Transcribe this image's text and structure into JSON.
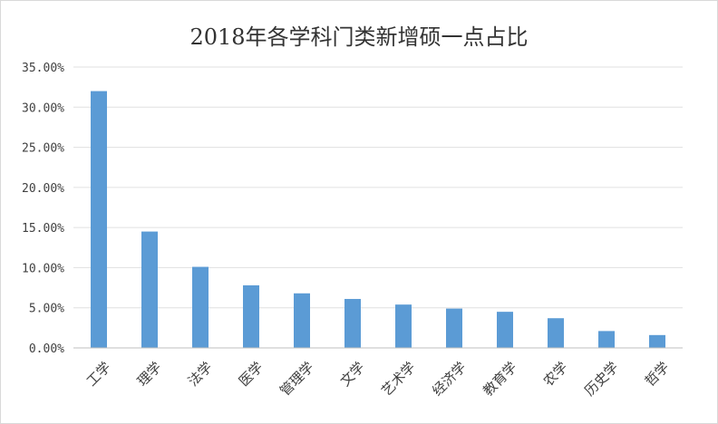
{
  "chart_data": {
    "type": "bar",
    "title": "2018年各学科门类新增硕一点占比",
    "xlabel": "",
    "ylabel": "",
    "categories": [
      "工学",
      "理学",
      "法学",
      "医学",
      "管理学",
      "文学",
      "艺术学",
      "经济学",
      "教育学",
      "农学",
      "历史学",
      "哲学"
    ],
    "values": [
      0.32,
      0.145,
      0.101,
      0.078,
      0.068,
      0.061,
      0.054,
      0.049,
      0.045,
      0.037,
      0.021,
      0.016
    ],
    "ylim": [
      0,
      0.35
    ],
    "yticks": [
      0,
      0.05,
      0.1,
      0.15,
      0.2,
      0.25,
      0.3,
      0.35
    ],
    "ytick_labels": [
      "0.00%",
      "5.00%",
      "10.00%",
      "15.00%",
      "20.00%",
      "25.00%",
      "30.00%",
      "35.00%"
    ],
    "grid": true,
    "legend": "none",
    "colors": {
      "bar": "#5b9bd5",
      "grid": "#e0e0e0",
      "axis": "#bfbfbf"
    }
  }
}
